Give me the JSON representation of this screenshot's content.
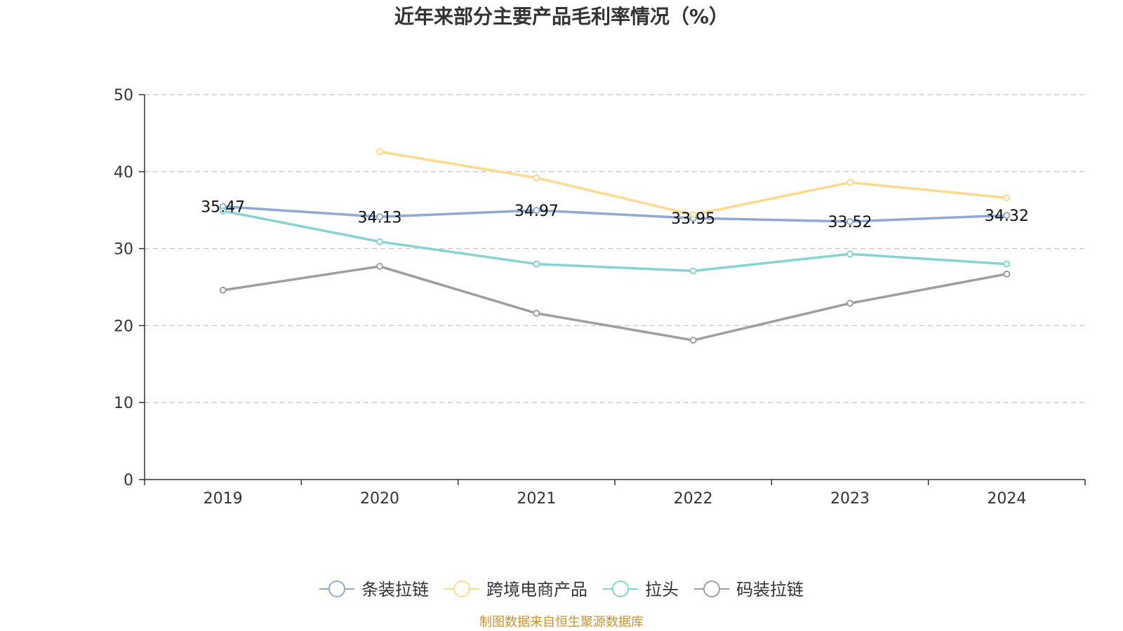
{
  "chart_data": {
    "type": "line",
    "title": "近年来部分主要产品毛利率情况（%）",
    "xlabel": "",
    "ylabel": "",
    "categories": [
      "2019",
      "2020",
      "2021",
      "2022",
      "2023",
      "2024"
    ],
    "ylim": [
      0,
      50
    ],
    "yticks": [
      0,
      10,
      20,
      30,
      40,
      50
    ],
    "grid": "horizontal-dashed",
    "legend_position": "bottom-center",
    "series": [
      {
        "name": "条装拉链",
        "color": "#8fa8d6",
        "values": [
          35.47,
          34.13,
          34.97,
          33.95,
          33.52,
          34.32
        ],
        "show_labels": true
      },
      {
        "name": "跨境电商产品",
        "color": "#fdd98f",
        "values": [
          null,
          42.6,
          39.2,
          34.4,
          38.6,
          36.6
        ],
        "show_labels": false
      },
      {
        "name": "拉头",
        "color": "#86d3d3",
        "values": [
          34.9,
          30.9,
          28.0,
          27.1,
          29.3,
          28.0
        ],
        "show_labels": false
      },
      {
        "name": "码装拉链",
        "color": "#9e9e9e",
        "values": [
          24.6,
          27.7,
          21.6,
          18.1,
          22.9,
          26.7
        ],
        "show_labels": false
      }
    ],
    "source": "制图数据来自恒生聚源数据库"
  }
}
